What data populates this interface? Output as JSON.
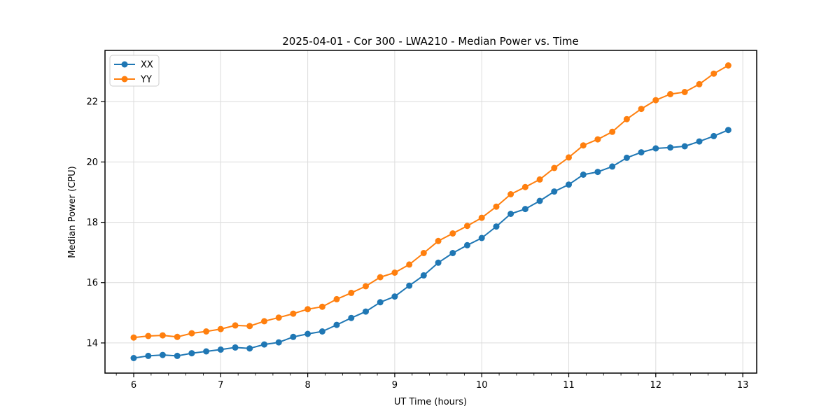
{
  "chart_data": {
    "type": "line",
    "title": "2025-04-01 - Cor 300 - LWA210 - Median Power vs. Time",
    "xlabel": "UT Time (hours)",
    "ylabel": "Median Power (CPU)",
    "xlim": [
      5.67,
      13.16
    ],
    "ylim": [
      13.0,
      23.7
    ],
    "xticks": [
      6,
      7,
      8,
      9,
      10,
      11,
      12,
      13
    ],
    "yticks": [
      14,
      16,
      18,
      20,
      22
    ],
    "x_minor_step": 0.2,
    "grid": true,
    "legend_position": "upper-left",
    "x": [
      6.0,
      6.167,
      6.333,
      6.5,
      6.667,
      6.833,
      7.0,
      7.167,
      7.333,
      7.5,
      7.667,
      7.833,
      8.0,
      8.167,
      8.333,
      8.5,
      8.667,
      8.833,
      9.0,
      9.167,
      9.333,
      9.5,
      9.667,
      9.833,
      10.0,
      10.167,
      10.333,
      10.5,
      10.667,
      10.833,
      11.0,
      11.167,
      11.333,
      11.5,
      11.667,
      11.833,
      12.0,
      12.167,
      12.333,
      12.5,
      12.667,
      12.833
    ],
    "series": [
      {
        "name": "XX",
        "color": "#1f77b4",
        "values": [
          13.5,
          13.57,
          13.6,
          13.57,
          13.66,
          13.72,
          13.78,
          13.85,
          13.82,
          13.95,
          14.02,
          14.2,
          14.3,
          14.38,
          14.6,
          14.83,
          15.04,
          15.35,
          15.54,
          15.9,
          16.24,
          16.66,
          16.98,
          17.24,
          17.48,
          17.86,
          18.28,
          18.44,
          18.71,
          19.02,
          19.25,
          19.58,
          19.67,
          19.85,
          20.14,
          20.32,
          20.45,
          20.48,
          20.52,
          20.68,
          20.86,
          21.06
        ]
      },
      {
        "name": "YY",
        "color": "#ff7f0e",
        "values": [
          14.18,
          14.23,
          14.25,
          14.2,
          14.32,
          14.38,
          14.46,
          14.58,
          14.56,
          14.72,
          14.84,
          14.97,
          15.12,
          15.2,
          15.45,
          15.66,
          15.88,
          16.18,
          16.33,
          16.6,
          16.98,
          17.38,
          17.63,
          17.88,
          18.15,
          18.52,
          18.93,
          19.17,
          19.42,
          19.8,
          20.15,
          20.55,
          20.75,
          21.0,
          21.42,
          21.76,
          22.05,
          22.25,
          22.32,
          22.58,
          22.93,
          23.2
        ]
      }
    ],
    "styles": {
      "grid_color": "#dcdcdc",
      "spine_color": "#000000",
      "tick_color": "#000000",
      "legend_border": "#cccccc",
      "background": "#ffffff"
    }
  }
}
